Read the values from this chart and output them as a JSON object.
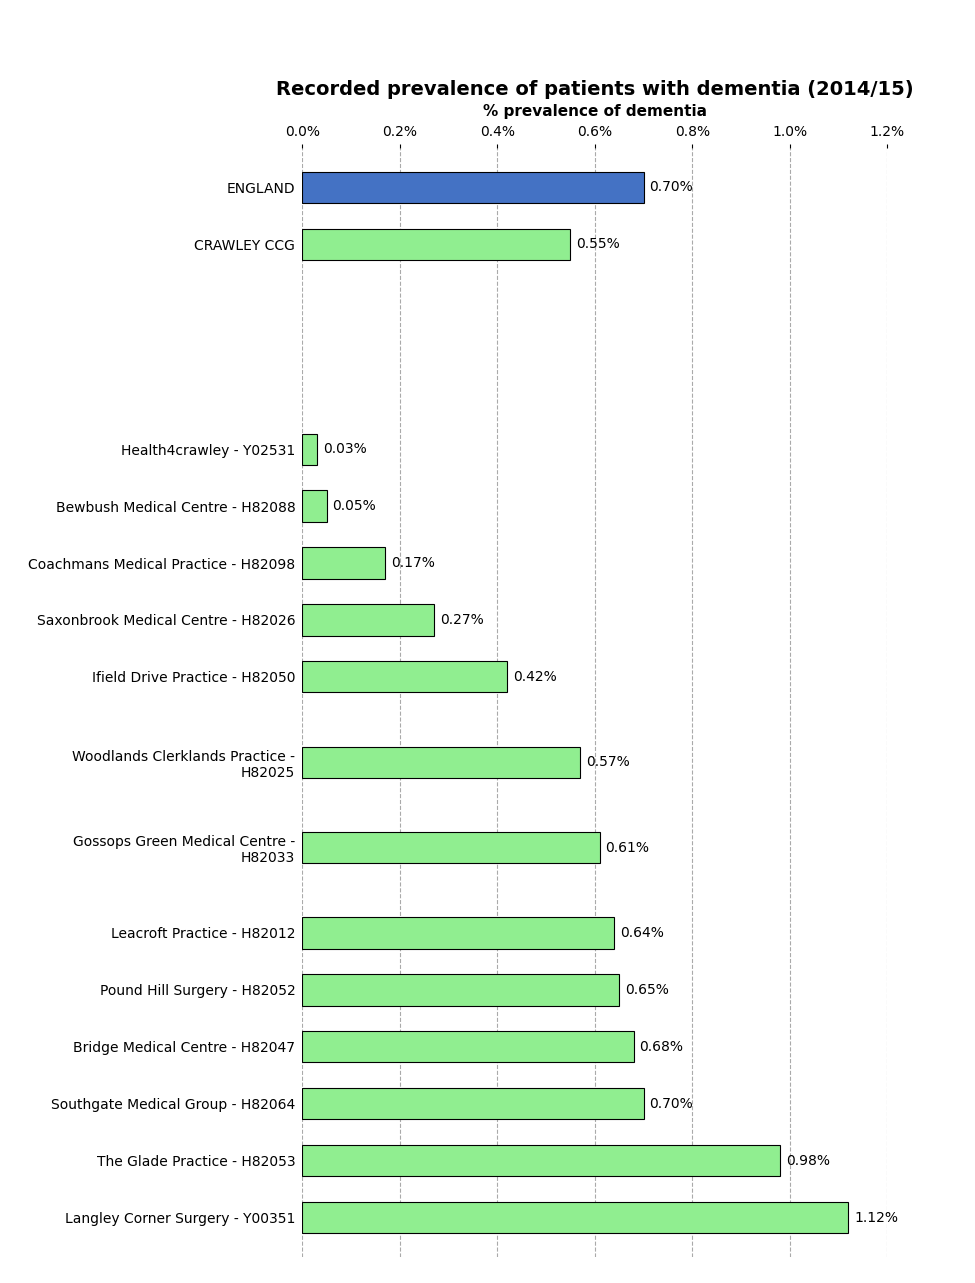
{
  "title": "Recorded prevalence of patients with dementia (2014/15)",
  "xlabel": "% prevalence of dementia",
  "practices": [
    "Langley Corner Surgery - Y00351",
    "The Glade Practice - H82053",
    "Southgate Medical Group - H82064",
    "Bridge Medical Centre - H82047",
    "Pound Hill Surgery - H82052",
    "Leacroft Practice - H82012",
    "Gossops Green Medical Centre -\nH82033",
    "Woodlands Clerklands Practice -\nH82025",
    "Ifield Drive Practice - H82050",
    "Saxonbrook Medical Centre - H82026",
    "Coachmans Medical Practice - H82098",
    "Bewbush Medical Centre - H82088",
    "Health4crawley - Y02531",
    "",
    "CRAWLEY CCG",
    "ENGLAND"
  ],
  "values": [
    1.12,
    0.98,
    0.7,
    0.68,
    0.65,
    0.64,
    0.61,
    0.57,
    0.42,
    0.27,
    0.17,
    0.05,
    0.03,
    0.0,
    0.55,
    0.7
  ],
  "colors": [
    "#90EE90",
    "#90EE90",
    "#90EE90",
    "#90EE90",
    "#90EE90",
    "#90EE90",
    "#90EE90",
    "#90EE90",
    "#90EE90",
    "#90EE90",
    "#90EE90",
    "#90EE90",
    "#90EE90",
    "#90EE90",
    "#90EE90",
    "#4472C4"
  ],
  "labels": [
    "1.12%",
    "0.98%",
    "0.70%",
    "0.68%",
    "0.65%",
    "0.64%",
    "0.61%",
    "0.57%",
    "0.42%",
    "0.27%",
    "0.17%",
    "0.05%",
    "0.03%",
    "",
    "0.55%",
    "0.70%"
  ],
  "xlim": [
    0,
    1.2
  ],
  "xticks": [
    0.0,
    0.2,
    0.4,
    0.6,
    0.8,
    1.0,
    1.2
  ],
  "xtick_labels": [
    "0.0%",
    "0.2%",
    "0.4%",
    "0.6%",
    "0.8%",
    "1.0%",
    "1.2%"
  ],
  "green_color": "#90EE90",
  "blue_color": "#4472C4",
  "bar_edge_color": "#000000",
  "grid_color": "#AAAAAA",
  "title_fontsize": 14,
  "label_fontsize": 10,
  "tick_fontsize": 10,
  "value_label_fontsize": 10,
  "background_color": "#FFFFFF"
}
